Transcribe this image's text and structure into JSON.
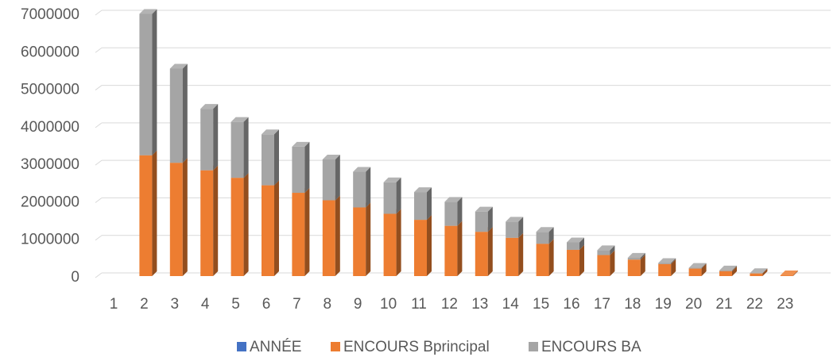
{
  "chart_data": {
    "type": "bar",
    "stacked": true,
    "three_d": true,
    "categories": [
      "1",
      "2",
      "3",
      "4",
      "5",
      "6",
      "7",
      "8",
      "9",
      "10",
      "11",
      "12",
      "13",
      "14",
      "15",
      "16",
      "17",
      "18",
      "19",
      "20",
      "21",
      "22",
      "23"
    ],
    "series": [
      {
        "name": "ANNÉE",
        "color": "#4472C4",
        "values": [
          0,
          0,
          0,
          0,
          0,
          0,
          0,
          0,
          0,
          0,
          0,
          0,
          0,
          0,
          0,
          0,
          0,
          0,
          0,
          0,
          0,
          0,
          0
        ]
      },
      {
        "name": "ENCOURS Bprincipal",
        "color": "#ED7D31",
        "values": [
          0,
          3220000,
          3020000,
          2820000,
          2620000,
          2420000,
          2220000,
          2020000,
          1830000,
          1660000,
          1500000,
          1340000,
          1180000,
          1020000,
          860000,
          700000,
          560000,
          440000,
          320000,
          200000,
          130000,
          70000,
          20000
        ]
      },
      {
        "name": "ENCOURS BA",
        "color": "#A5A5A5",
        "values": [
          0,
          3770000,
          2510000,
          1640000,
          1490000,
          1360000,
          1230000,
          1090000,
          950000,
          840000,
          740000,
          640000,
          540000,
          430000,
          320000,
          200000,
          130000,
          50000,
          30000,
          20000,
          20000,
          10000,
          0
        ]
      }
    ],
    "ylim": [
      0,
      7000000
    ],
    "yticks": [
      "0",
      "1000000",
      "2000000",
      "3000000",
      "4000000",
      "5000000",
      "6000000",
      "7000000"
    ],
    "grid": true,
    "legend": "bottom",
    "title": "",
    "xlabel": "",
    "ylabel": ""
  }
}
